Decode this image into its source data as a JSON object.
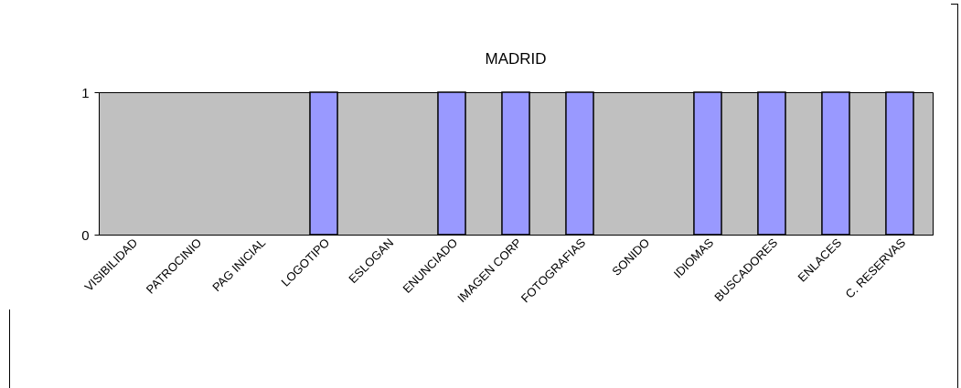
{
  "chart_data": {
    "type": "bar",
    "title": "MADRID",
    "categories": [
      "VISIBILIDAD",
      "PATROCINIO",
      "PAG INICIAL",
      "LOGOTIPO",
      "ESLOGAN",
      "ENUNCIADO",
      "IMAGEN CORP",
      "FOTOGRAFIAS",
      "SONIDO",
      "IDIOMAS",
      "BUSCADORES",
      "ENLACES",
      "C. RESERVAS"
    ],
    "values": [
      0,
      0,
      0,
      1,
      0,
      1,
      1,
      1,
      0,
      1,
      1,
      1,
      1
    ],
    "color": "#9999ff",
    "ylim": [
      0,
      1
    ],
    "yticks": [
      0,
      1
    ],
    "grid": false
  }
}
